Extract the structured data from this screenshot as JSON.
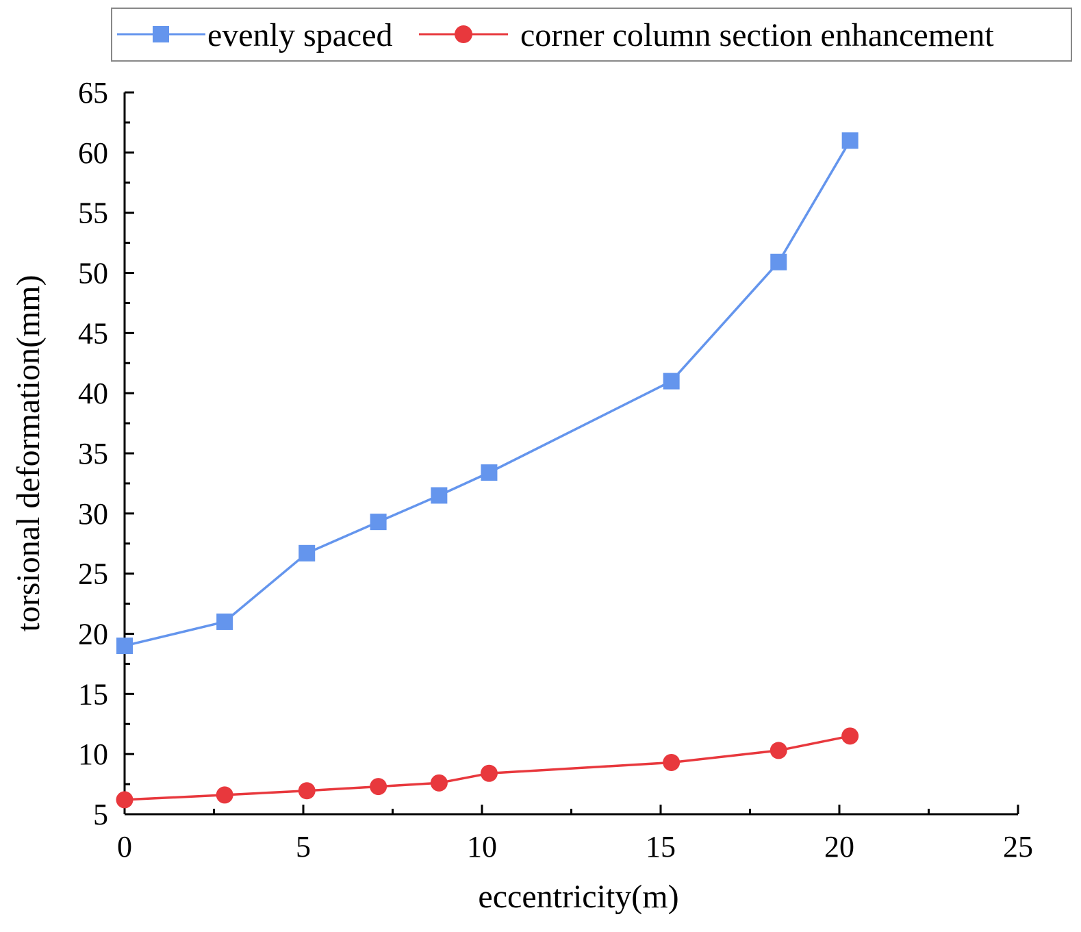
{
  "colors": {
    "series_a": "#6495ED",
    "series_b": "#E8383D",
    "axis": "#000000",
    "legend_border": "#888888",
    "background": "#ffffff"
  },
  "chart_data": {
    "type": "line",
    "title": "",
    "xlabel": "eccentricity(m)",
    "ylabel": "torsional deformation(mm)",
    "xlim": [
      0,
      25
    ],
    "ylim": [
      5,
      65
    ],
    "x_ticks": [
      0,
      5,
      10,
      15,
      20,
      25
    ],
    "x_tick_labels": [
      "0",
      "5",
      "10",
      "15",
      "20",
      "25"
    ],
    "y_ticks": [
      5,
      10,
      15,
      20,
      25,
      30,
      35,
      40,
      45,
      50,
      55,
      60,
      65
    ],
    "y_tick_labels": [
      "5",
      "10",
      "15",
      "20",
      "25",
      "30",
      "35",
      "40",
      "45",
      "50",
      "55",
      "60",
      "65"
    ],
    "grid": false,
    "legend_position": "top",
    "series": [
      {
        "name": "evenly spaced",
        "marker": "square",
        "color": "#6495ED",
        "x": [
          0,
          2.8,
          5.1,
          7.1,
          8.8,
          10.2,
          15.3,
          18.3,
          20.3
        ],
        "y": [
          19.0,
          21.0,
          26.7,
          29.3,
          31.5,
          33.4,
          41.0,
          50.9,
          61.0
        ]
      },
      {
        "name": "corner column section enhancement",
        "marker": "circle",
        "color": "#E8383D",
        "x": [
          0,
          2.8,
          5.1,
          7.1,
          8.8,
          10.2,
          15.3,
          18.3,
          20.3
        ],
        "y": [
          6.2,
          6.6,
          6.95,
          7.3,
          7.6,
          8.4,
          9.3,
          10.3,
          11.5
        ]
      }
    ]
  }
}
